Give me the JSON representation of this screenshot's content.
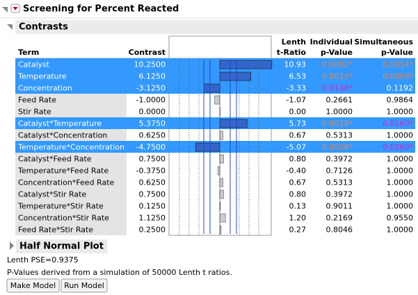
{
  "header": {
    "title": "Screening for Percent Reacted"
  },
  "contrasts": {
    "title": "Contrasts",
    "columns": [
      [
        "Term"
      ],
      [
        "Contrast"
      ],
      [
        "Lenth",
        "t-Ratio"
      ],
      [
        "Individual",
        "p-Value"
      ],
      [
        "Simultaneous",
        "p-Value"
      ]
    ],
    "rows": [
      {
        "term": "Catalyst",
        "contrast": "10.2500",
        "t_ratio": "10.93",
        "p_individual": "0.0002*",
        "p_simultaneous": "0.0014*",
        "selected": true
      },
      {
        "term": "Temperature",
        "contrast": "6.1250",
        "t_ratio": "6.53",
        "p_individual": "0.0011*",
        "p_simultaneous": "0.0098*",
        "selected": true
      },
      {
        "term": "Concentration",
        "contrast": "-3.1250",
        "t_ratio": "-3.33",
        "p_individual": "0.0138*",
        "p_simultaneous": "0.1192",
        "selected": true
      },
      {
        "term": "Feed Rate",
        "contrast": "-1.0000",
        "t_ratio": "-1.07",
        "p_individual": "0.2661",
        "p_simultaneous": "0.9864",
        "selected": false
      },
      {
        "term": "Stir Rate",
        "contrast": "0.0000",
        "t_ratio": "0.00",
        "p_individual": "1.0000",
        "p_simultaneous": "1.0000",
        "selected": false
      },
      {
        "term": "Catalyst*Temperature",
        "contrast": "5.3750",
        "t_ratio": "5.73",
        "p_individual": "0.0018*",
        "p_simultaneous": "0.0160*",
        "selected": true
      },
      {
        "term": "Catalyst*Concentration",
        "contrast": "0.6250",
        "t_ratio": "0.67",
        "p_individual": "0.5313",
        "p_simultaneous": "1.0000",
        "selected": false
      },
      {
        "term": "Temperature*Concentration",
        "contrast": "-4.7500",
        "t_ratio": "-5.07",
        "p_individual": "0.0028*",
        "p_simultaneous": "0.0260*",
        "selected": true
      },
      {
        "term": "Catalyst*Feed Rate",
        "contrast": "0.7500",
        "t_ratio": "0.80",
        "p_individual": "0.3972",
        "p_simultaneous": "1.0000",
        "selected": false
      },
      {
        "term": "Temperature*Feed Rate",
        "contrast": "-0.3750",
        "t_ratio": "-0.40",
        "p_individual": "0.7126",
        "p_simultaneous": "1.0000",
        "selected": false
      },
      {
        "term": "Concentration*Feed Rate",
        "contrast": "0.6250",
        "t_ratio": "0.67",
        "p_individual": "0.5313",
        "p_simultaneous": "1.0000",
        "selected": false
      },
      {
        "term": "Catalyst*Stir Rate",
        "contrast": "0.7500",
        "t_ratio": "0.80",
        "p_individual": "0.3972",
        "p_simultaneous": "1.0000",
        "selected": false
      },
      {
        "term": "Temperature*Stir Rate",
        "contrast": "0.1250",
        "t_ratio": "0.13",
        "p_individual": "0.9011",
        "p_simultaneous": "1.0000",
        "selected": false
      },
      {
        "term": "Concentration*Stir Rate",
        "contrast": "1.1250",
        "t_ratio": "1.20",
        "p_individual": "0.2169",
        "p_simultaneous": "0.9550",
        "selected": false
      },
      {
        "term": "Feed Rate*Stir Rate",
        "contrast": "0.2500",
        "t_ratio": "0.27",
        "p_individual": "0.8046",
        "p_simultaneous": "1.0000",
        "selected": false
      }
    ]
  },
  "half_normal": {
    "title": "Half Normal Plot"
  },
  "notes": [
    "Lenth PSE=0.9375",
    "P-Values derived from a simulation of 50000 Lenth t ratios."
  ],
  "buttons": [
    "Make Model",
    "Run Model"
  ]
}
